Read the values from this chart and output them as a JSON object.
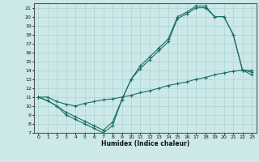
{
  "xlabel": "Humidex (Indice chaleur)",
  "xlim": [
    -0.5,
    23.5
  ],
  "ylim": [
    7,
    21.5
  ],
  "xticks": [
    0,
    1,
    2,
    3,
    4,
    5,
    6,
    7,
    8,
    9,
    10,
    11,
    12,
    13,
    14,
    15,
    16,
    17,
    18,
    19,
    20,
    21,
    22,
    23
  ],
  "yticks": [
    7,
    8,
    9,
    10,
    11,
    12,
    13,
    14,
    15,
    16,
    17,
    18,
    19,
    20,
    21
  ],
  "bg_color": "#cce8e8",
  "line_color": "#1a6e64",
  "grid_color": "#aad4d4",
  "line1_x": [
    0,
    1,
    2,
    3,
    4,
    5,
    6,
    7,
    8,
    9,
    10,
    11,
    12,
    13,
    14,
    15,
    16,
    17,
    18,
    19,
    20,
    21,
    22,
    23
  ],
  "line1_y": [
    11,
    10.6,
    10,
    9.3,
    8.8,
    8.3,
    7.8,
    7.3,
    8.2,
    10.7,
    13.0,
    14.5,
    15.5,
    16.5,
    17.5,
    20.0,
    20.5,
    21.2,
    21.2,
    20.0,
    20.0,
    18.0,
    14.0,
    13.8
  ],
  "line2_x": [
    0,
    1,
    2,
    3,
    4,
    5,
    6,
    7,
    8,
    9,
    10,
    11,
    12,
    13,
    14,
    15,
    16,
    17,
    18,
    19,
    20,
    21,
    22,
    23
  ],
  "line2_y": [
    11,
    10.6,
    10,
    9.0,
    8.5,
    8.0,
    7.5,
    7.0,
    7.8,
    10.7,
    13.0,
    14.2,
    15.2,
    16.2,
    17.2,
    19.8,
    20.3,
    21.0,
    21.0,
    20.0,
    20.0,
    18.0,
    14.0,
    13.5
  ],
  "line3_x": [
    0,
    1,
    2,
    3,
    4,
    5,
    6,
    7,
    8,
    9,
    10,
    11,
    12,
    13,
    14,
    15,
    16,
    17,
    18,
    19,
    20,
    21,
    22,
    23
  ],
  "line3_y": [
    11,
    11.0,
    10.5,
    10.2,
    10.0,
    10.3,
    10.5,
    10.7,
    10.8,
    11.0,
    11.2,
    11.5,
    11.7,
    12.0,
    12.3,
    12.5,
    12.7,
    13.0,
    13.2,
    13.5,
    13.7,
    13.9,
    14.0,
    14.0
  ]
}
